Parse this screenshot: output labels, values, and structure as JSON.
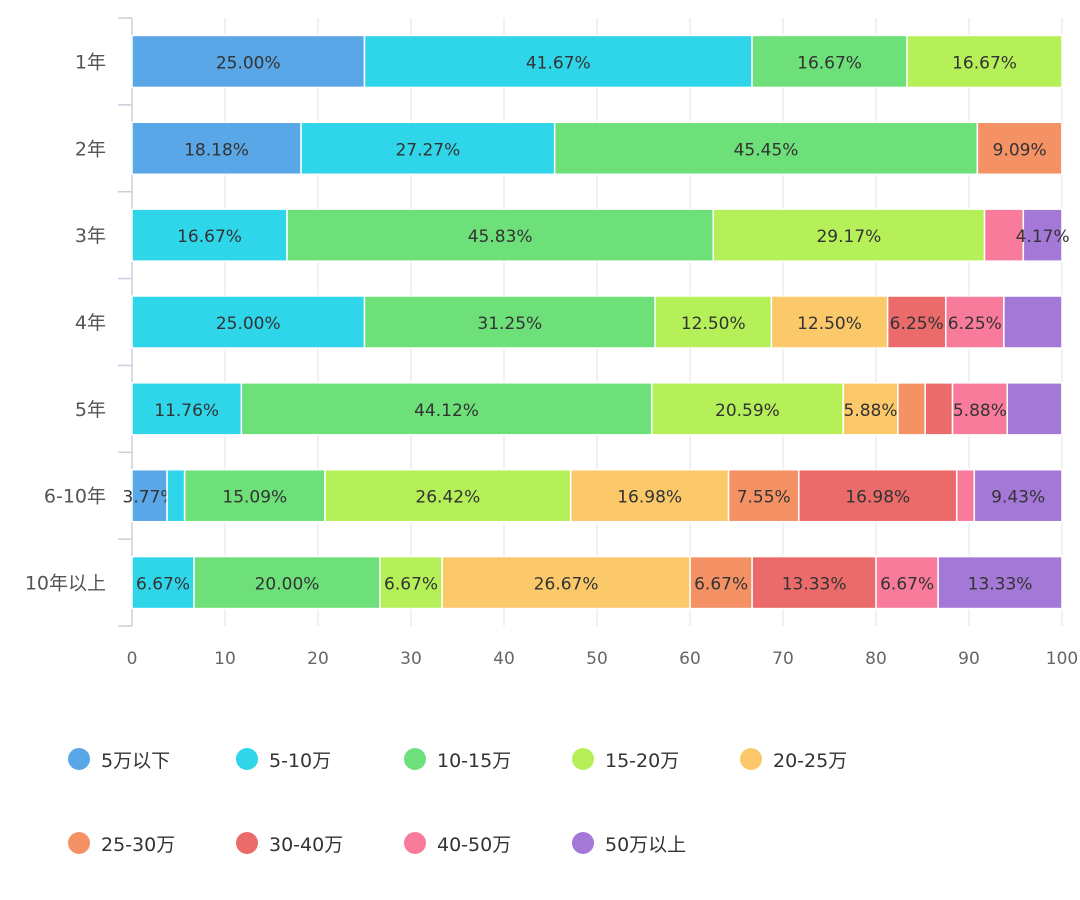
{
  "chart_data": {
    "type": "bar",
    "orientation": "horizontal",
    "stacked": true,
    "categories": [
      "1年",
      "2年",
      "3年",
      "4年",
      "5年",
      "6-10年",
      "10年以上"
    ],
    "xlim": [
      0,
      100
    ],
    "xticks": [
      0,
      10,
      20,
      30,
      40,
      50,
      60,
      70,
      80,
      90,
      100
    ],
    "grid": "vertical",
    "legend_position": "bottom",
    "series": [
      {
        "name": "5万以下",
        "color": "#5aa7e8",
        "values": [
          25.0,
          18.18,
          0,
          0,
          0,
          3.77,
          0
        ],
        "labels": [
          "25.00%",
          "18.18%",
          "",
          "",
          "",
          "3.77%",
          ""
        ]
      },
      {
        "name": "5-10万",
        "color": "#2fd6ea",
        "values": [
          41.67,
          27.27,
          16.67,
          25.0,
          11.76,
          1.89,
          6.67
        ],
        "labels": [
          "41.67%",
          "27.27%",
          "16.67%",
          "25.00%",
          "11.76%",
          "",
          "6.67%"
        ]
      },
      {
        "name": "10-15万",
        "color": "#6de07a",
        "values": [
          16.67,
          45.45,
          45.83,
          31.25,
          44.12,
          15.09,
          20.0
        ],
        "labels": [
          "16.67%",
          "45.45%",
          "45.83%",
          "31.25%",
          "44.12%",
          "15.09%",
          "20.00%"
        ]
      },
      {
        "name": "15-20万",
        "color": "#b5f058",
        "values": [
          16.67,
          0,
          29.17,
          12.5,
          20.59,
          26.42,
          6.67
        ],
        "labels": [
          "16.67%",
          "",
          "29.17%",
          "12.50%",
          "20.59%",
          "26.42%",
          "6.67%"
        ]
      },
      {
        "name": "20-25万",
        "color": "#fbc969",
        "values": [
          0,
          0,
          0,
          12.5,
          5.88,
          16.98,
          26.67
        ],
        "labels": [
          "",
          "",
          "",
          "12.50%",
          "5.88%",
          "16.98%",
          "26.67%"
        ]
      },
      {
        "name": "25-30万",
        "color": "#f49165",
        "values": [
          0,
          9.09,
          0,
          0,
          2.94,
          7.55,
          6.67
        ],
        "labels": [
          "",
          "9.09%",
          "",
          "",
          "",
          "7.55%",
          "6.67%"
        ]
      },
      {
        "name": "30-40万",
        "color": "#eb6a6a",
        "values": [
          0,
          0,
          0,
          6.25,
          2.94,
          16.98,
          13.33
        ],
        "labels": [
          "",
          "",
          "",
          "6.25%",
          "",
          "16.98%",
          "13.33%"
        ]
      },
      {
        "name": "40-50万",
        "color": "#f97b9c",
        "values": [
          0,
          0,
          4.17,
          6.25,
          5.88,
          1.89,
          6.67
        ],
        "labels": [
          "",
          "",
          "",
          "6.25%",
          "5.88%",
          "",
          "6.67%"
        ]
      },
      {
        "name": "50万以上",
        "color": "#a478d6",
        "values": [
          0,
          0,
          4.17,
          6.25,
          5.88,
          9.43,
          13.33
        ],
        "labels": [
          "",
          "",
          "4.17%",
          "",
          "",
          "9.43%",
          "13.33%"
        ]
      }
    ]
  }
}
